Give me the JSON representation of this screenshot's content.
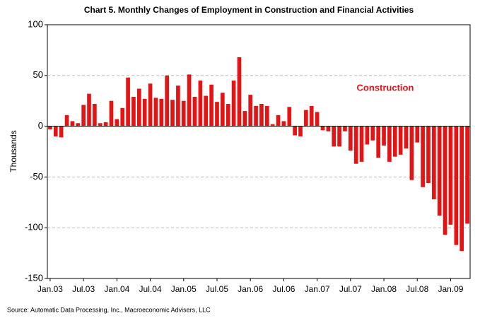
{
  "chart_data": {
    "type": "bar",
    "title": "Chart 5.  Monthly Changes of Employment in Construction and Financial Activities",
    "y_label": "Thousands",
    "annotation": "Construction",
    "source": "Source: Automatic Data Processing, Inc., Macroeconomic Advisers, LLC",
    "color": "#e41414",
    "categories": [
      "Jan.03",
      null,
      null,
      null,
      null,
      null,
      "Jul.03",
      null,
      null,
      null,
      null,
      null,
      "Jan.04",
      null,
      null,
      null,
      null,
      null,
      "Jul.04",
      null,
      null,
      null,
      null,
      null,
      "Jan.05",
      null,
      null,
      null,
      null,
      null,
      "Jul.05",
      null,
      null,
      null,
      null,
      null,
      "Jan.06",
      null,
      null,
      null,
      null,
      null,
      "Jul.06",
      null,
      null,
      null,
      null,
      null,
      "Jan.07",
      null,
      null,
      null,
      null,
      null,
      "Jul.07",
      null,
      null,
      null,
      null,
      null,
      "Jan.08",
      null,
      null,
      null,
      null,
      null,
      "Jul.08",
      null,
      null,
      null,
      null,
      null,
      "Jan.09",
      null,
      null,
      null
    ],
    "values": [
      -3,
      -10,
      -11,
      11,
      5,
      3,
      21,
      32,
      22,
      3,
      4,
      25,
      7,
      18,
      48,
      29,
      37,
      27,
      42,
      28,
      27,
      50,
      26,
      40,
      25,
      51,
      29,
      45,
      30,
      41,
      24,
      33,
      22,
      45,
      68,
      15,
      31,
      20,
      22,
      20,
      2,
      11,
      5,
      19,
      -9,
      -10,
      16,
      20,
      14,
      -4,
      -5,
      -20,
      -20,
      -5,
      -24,
      -37,
      -35,
      -18,
      -14,
      -31,
      -19,
      -35,
      -30,
      -28,
      -22,
      -53,
      -16,
      -60,
      -56,
      -72,
      -88,
      -107,
      -97,
      -117,
      -123,
      -96
    ],
    "ylim": [
      -150,
      100
    ],
    "yticks": [
      -150,
      -100,
      -50,
      0,
      50,
      100
    ],
    "grid": true
  }
}
